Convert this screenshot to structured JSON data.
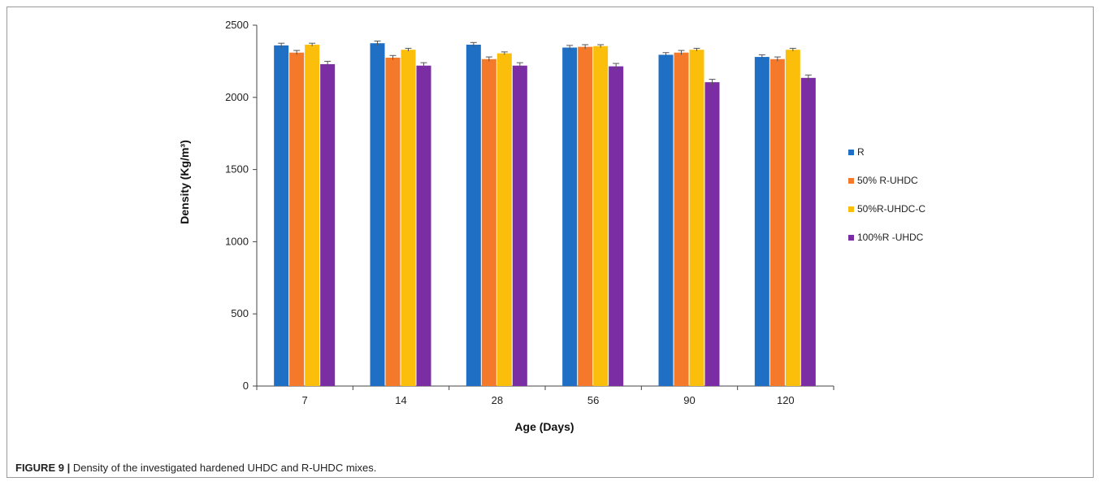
{
  "caption": {
    "label": "FIGURE 9 |",
    "text": "Density of the investigated hardened UHDC and R-UHDC mixes."
  },
  "chart_data": {
    "type": "bar",
    "xlabel": "Age (Days)",
    "ylabel": "Density (Kg/m³)",
    "ylim": [
      0,
      2500
    ],
    "yticks": [
      0,
      500,
      1000,
      1500,
      2000,
      2500
    ],
    "grid": false,
    "legend_position": "right",
    "error_bars": true,
    "categories": [
      "7",
      "14",
      "28",
      "56",
      "90",
      "120"
    ],
    "series": [
      {
        "name": "R",
        "color": "#1f6fc5",
        "values": [
          2360,
          2375,
          2365,
          2345,
          2295,
          2280
        ],
        "errors": [
          15,
          15,
          15,
          15,
          15,
          15
        ]
      },
      {
        "name": "50% R-UHDC",
        "color": "#f4792a",
        "values": [
          2310,
          2275,
          2265,
          2350,
          2310,
          2265
        ],
        "errors": [
          15,
          15,
          15,
          15,
          15,
          15
        ]
      },
      {
        "name": "50%R-UHDC-C",
        "color": "#fbbf0b",
        "values": [
          2365,
          2330,
          2305,
          2355,
          2330,
          2330
        ],
        "errors": [
          10,
          10,
          10,
          10,
          10,
          10
        ]
      },
      {
        "name": "100%R -UHDC",
        "color": "#7b2ea3",
        "values": [
          2230,
          2220,
          2220,
          2215,
          2105,
          2135
        ],
        "errors": [
          20,
          20,
          20,
          20,
          20,
          20
        ]
      }
    ]
  }
}
